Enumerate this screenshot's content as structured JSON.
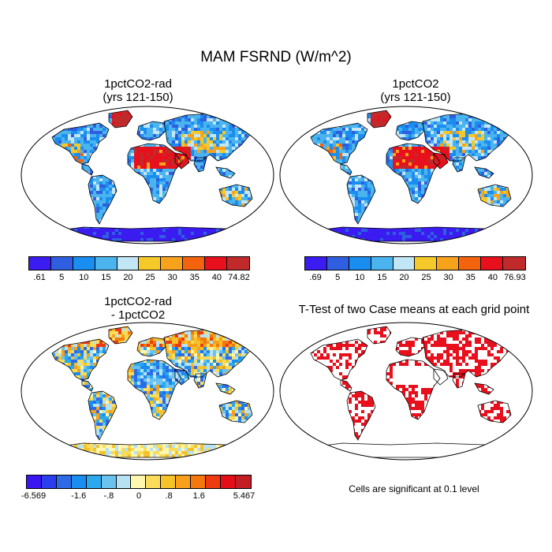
{
  "title": "MAM FSRND (W/m^2)",
  "panels": [
    {
      "id": "p1",
      "title_line1": "1pctCO2-rad",
      "title_line2": "(yrs 121-150)",
      "type": "abs"
    },
    {
      "id": "p2",
      "title_line1": "1pctCO2",
      "title_line2": "(yrs 121-150)",
      "type": "abs"
    },
    {
      "id": "p3",
      "title_line1": "1pctCO2-rad",
      "title_line2": "- 1pctCO2",
      "type": "diff"
    },
    {
      "id": "p4",
      "title_line1": "T-Test of two Case means at each grid point",
      "title_line2": "",
      "type": "ttest"
    }
  ],
  "colorbars": [
    {
      "id": "cb1",
      "labels": [
        ".61",
        "5",
        "10",
        "15",
        "20",
        "25",
        "30",
        "35",
        "40",
        "74.82"
      ],
      "colors": [
        "#3a1cf0",
        "#2f5fe0",
        "#1a8ef0",
        "#4bb4ee",
        "#c2e6f6",
        "#f5c92a",
        "#f7a21b",
        "#f4640e",
        "#e8101c",
        "#c02a2a"
      ]
    },
    {
      "id": "cb2",
      "labels": [
        ".69",
        "5",
        "10",
        "15",
        "20",
        "25",
        "30",
        "35",
        "40",
        "76.93"
      ],
      "colors": [
        "#3a1cf0",
        "#2f5fe0",
        "#1a8ef0",
        "#4bb4ee",
        "#c2e6f6",
        "#f5c92a",
        "#f7a21b",
        "#f4640e",
        "#e8101c",
        "#c02a2a"
      ]
    },
    {
      "id": "cb3",
      "labels": [
        "-6.569",
        "-1.6",
        "-.8",
        "0",
        ".8",
        "1.6",
        "5.467"
      ],
      "label_slots": [
        0,
        3,
        5,
        7,
        9,
        11,
        14
      ],
      "colors": [
        "#3a16f2",
        "#2a3ef0",
        "#2d6ae6",
        "#1a8ef0",
        "#2ba8ee",
        "#6bc2ee",
        "#b6e2f4",
        "#fff7b0",
        "#f8dc5a",
        "#f5c22a",
        "#f7a01b",
        "#f4780e",
        "#ee3a10",
        "#e40e18",
        "#c21e24"
      ]
    }
  ],
  "ttest_note": "Cells are significant at 0.1 level",
  "colors": {
    "ocean": "#ffffff",
    "coast": "#000000",
    "land_base": "#4bb4ee",
    "antarctica_abs": "#3a1cf0",
    "desert_abs": "#e8101c",
    "signif": "#e8101c"
  }
}
